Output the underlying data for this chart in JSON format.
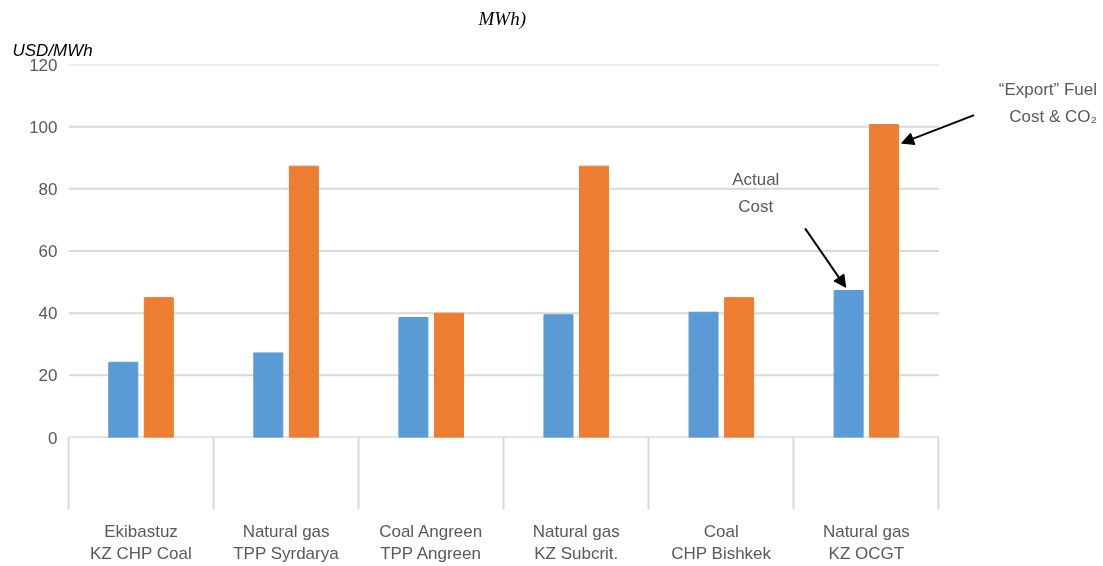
{
  "chart_data": {
    "type": "bar",
    "title": "MWh)",
    "ylabel": "USD/MWh",
    "categories": [
      "Ekibastuz\nKZ CHP Coal",
      "Natural gas\nTPP Syrdarya",
      "Coal Angreen\nTPP Angreen",
      "Natural gas\nKZ Subcrit.",
      "Coal\nCHP Bishkek",
      "Natural gas\nKZ OCGT"
    ],
    "series": [
      {
        "color": "#5b9bd5",
        "values": [
          24.2,
          27.2,
          38.6,
          39.5,
          40.3,
          47.3
        ]
      },
      {
        "color": "#ed7d31",
        "values": [
          45,
          87.3,
          40,
          87.3,
          45,
          100.7
        ]
      }
    ],
    "ylim": [
      0,
      120
    ],
    "yticks": [
      0,
      20,
      40,
      60,
      80,
      100,
      120
    ],
    "grid": "y",
    "annotations": [
      "Actual Cost",
      "“Export” Fuel Cost & CO₂"
    ]
  }
}
